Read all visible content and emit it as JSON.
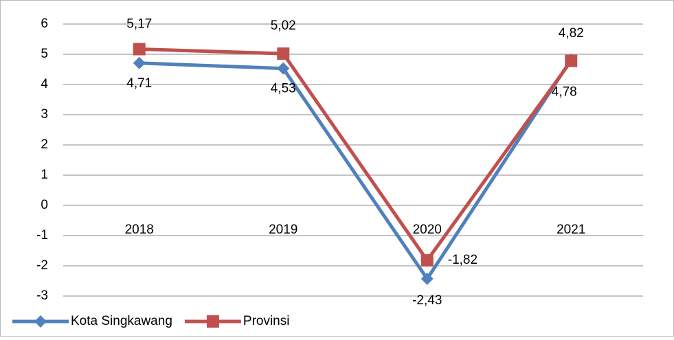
{
  "chart_data": {
    "type": "line",
    "categories": [
      "2018",
      "2019",
      "2020",
      "2021"
    ],
    "series": [
      {
        "name": "Kota Singkawang",
        "color": "#4f81bd",
        "marker": "diamond",
        "values": [
          4.71,
          4.53,
          -2.43,
          4.82
        ],
        "value_labels": [
          "4,71",
          "4,53",
          "-2,43",
          "4,82"
        ]
      },
      {
        "name": "Provinsi",
        "color": "#c0504d",
        "marker": "square",
        "values": [
          5.17,
          5.02,
          -1.82,
          4.78
        ],
        "value_labels": [
          "5,17",
          "5,02",
          "-1,82",
          "4,78"
        ]
      }
    ],
    "ylim": [
      -3,
      6
    ],
    "yticks": [
      -3,
      -2,
      -1,
      0,
      1,
      2,
      3,
      4,
      5,
      6
    ],
    "grid": true,
    "legend": "bottom-left"
  }
}
